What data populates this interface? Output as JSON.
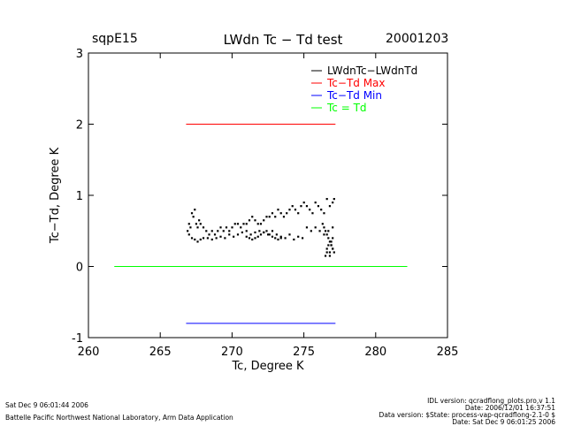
{
  "header": {
    "site": "sqpE15",
    "title": "LWdn Tc − Td test",
    "date": "20001203"
  },
  "chart_data": {
    "type": "scatter",
    "xlabel": "Tc, Degree K",
    "ylabel": "Tc−Td, Degree K",
    "xlim": [
      260,
      285
    ],
    "ylim": [
      -1,
      3
    ],
    "xticks": [
      260,
      265,
      270,
      275,
      280,
      285
    ],
    "yticks": [
      -1,
      0,
      1,
      2,
      3
    ],
    "legend": [
      {
        "label": "LWdnTc−LWdnTd",
        "color": "#000000"
      },
      {
        "label": "Tc−Td Max",
        "color": "#ff0000"
      },
      {
        "label": "Tc−Td Min",
        "color": "#0000ff"
      },
      {
        "label": "Tc = Td",
        "color": "#00ff00"
      }
    ],
    "lines": [
      {
        "name": "Tc−Td Max",
        "color": "#ff0000",
        "x": [
          266.8,
          277.2
        ],
        "y": [
          2.0,
          2.0
        ]
      },
      {
        "name": "Tc−Td Min",
        "color": "#0000ff",
        "x": [
          266.8,
          277.2
        ],
        "y": [
          -0.8,
          -0.8
        ]
      },
      {
        "name": "Tc = Td",
        "color": "#00ff00",
        "x": [
          261.8,
          282.2
        ],
        "y": [
          0.0,
          0.0
        ]
      }
    ],
    "scatter_series": [
      {
        "name": "LWdnTc−LWdnTd",
        "color": "#000000",
        "x": [
          266.9,
          267.0,
          267.0,
          267.1,
          267.2,
          267.3,
          267.4,
          267.5,
          267.6,
          267.7,
          267.8,
          268.0,
          268.2,
          268.4,
          268.6,
          268.8,
          269.0,
          269.2,
          269.4,
          269.6,
          269.8,
          270.0,
          270.2,
          270.4,
          270.6,
          270.8,
          271.0,
          271.2,
          271.4,
          271.6,
          271.8,
          272.0,
          272.2,
          272.4,
          272.6,
          272.8,
          273.0,
          273.2,
          273.4,
          273.6,
          273.8,
          274.0,
          274.2,
          274.4,
          274.6,
          274.8,
          275.0,
          275.2,
          275.4,
          275.6,
          275.8,
          276.0,
          276.2,
          276.4,
          276.6,
          276.8,
          277.0,
          277.1,
          267.2,
          267.4,
          267.6,
          267.8,
          268.0,
          268.3,
          268.6,
          268.9,
          269.2,
          269.5,
          269.8,
          270.1,
          270.4,
          270.7,
          271.0,
          271.3,
          271.6,
          271.9,
          272.2,
          272.5,
          272.8,
          273.1,
          273.4,
          273.7,
          274.0,
          274.3,
          274.6,
          274.9,
          275.2,
          275.5,
          275.8,
          276.1,
          276.4,
          276.7,
          277.0,
          271.0,
          271.2,
          271.4,
          271.6,
          271.8,
          272.0,
          272.2,
          272.4,
          272.6,
          272.8,
          273.0,
          273.2,
          273.4,
          276.3,
          276.4,
          276.5,
          276.6,
          276.7,
          276.8,
          276.9,
          277.0,
          277.1,
          276.5,
          276.6,
          276.7,
          276.8,
          276.9,
          277.0,
          276.6,
          276.8,
          276.9,
          277.0
        ],
        "y": [
          0.5,
          0.6,
          0.45,
          0.55,
          0.75,
          0.7,
          0.8,
          0.6,
          0.55,
          0.65,
          0.6,
          0.55,
          0.5,
          0.45,
          0.5,
          0.45,
          0.5,
          0.55,
          0.5,
          0.55,
          0.5,
          0.55,
          0.6,
          0.6,
          0.55,
          0.6,
          0.6,
          0.65,
          0.7,
          0.65,
          0.6,
          0.6,
          0.65,
          0.7,
          0.7,
          0.75,
          0.7,
          0.8,
          0.75,
          0.7,
          0.75,
          0.8,
          0.85,
          0.8,
          0.75,
          0.85,
          0.9,
          0.85,
          0.8,
          0.75,
          0.9,
          0.85,
          0.8,
          0.75,
          0.95,
          0.85,
          0.9,
          0.95,
          0.4,
          0.38,
          0.35,
          0.38,
          0.4,
          0.4,
          0.38,
          0.4,
          0.42,
          0.4,
          0.45,
          0.42,
          0.45,
          0.48,
          0.5,
          0.45,
          0.48,
          0.5,
          0.48,
          0.45,
          0.5,
          0.45,
          0.42,
          0.4,
          0.45,
          0.38,
          0.42,
          0.4,
          0.55,
          0.5,
          0.55,
          0.5,
          0.45,
          0.5,
          0.55,
          0.42,
          0.4,
          0.38,
          0.4,
          0.42,
          0.45,
          0.48,
          0.5,
          0.45,
          0.42,
          0.4,
          0.38,
          0.4,
          0.6,
          0.55,
          0.5,
          0.45,
          0.4,
          0.35,
          0.3,
          0.25,
          0.2,
          0.15,
          0.25,
          0.3,
          0.2,
          0.35,
          0.4,
          0.2,
          0.15,
          0.3,
          0.25
        ]
      }
    ]
  },
  "footer": {
    "left_date": "Sat Dec  9 06:01:44 2006",
    "left_lab": "Battelle Pacific Northwest National Laboratory, Arm Data Application",
    "right_idl": "IDL version: qcradflong_plots.pro,v 1.1",
    "right_date": "Date: 2006/12/01 16:37:51",
    "right_data": "Data version: $State: process-vap-qcradflong-2.1-0 $",
    "right_run": "Date: Sat Dec  9 06:01:25 2006"
  }
}
